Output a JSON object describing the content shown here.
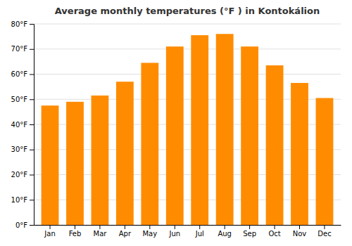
{
  "chart_data": {
    "type": "bar",
    "title": "Average monthly temperatures (°F ) in Kontokálion",
    "categories": [
      "Jan",
      "Feb",
      "Mar",
      "Apr",
      "May",
      "Jun",
      "Jul",
      "Aug",
      "Sep",
      "Oct",
      "Nov",
      "Dec"
    ],
    "values": [
      47.5,
      49.0,
      51.5,
      57.0,
      64.5,
      71.0,
      75.5,
      76.0,
      71.0,
      63.5,
      56.5,
      50.5
    ],
    "color": "#FF8C00",
    "ylim": [
      0,
      80
    ],
    "yticks": [
      {
        "value": 0,
        "label": "0°F"
      },
      {
        "value": 10,
        "label": "10°F"
      },
      {
        "value": 20,
        "label": "20°F"
      },
      {
        "value": 30,
        "label": "30°F"
      },
      {
        "value": 40,
        "label": "40°F"
      },
      {
        "value": 50,
        "label": "50°F"
      },
      {
        "value": 60,
        "label": "60°F"
      },
      {
        "value": 70,
        "label": "70°F"
      },
      {
        "value": 80,
        "label": "80°F"
      }
    ],
    "grid": true
  }
}
